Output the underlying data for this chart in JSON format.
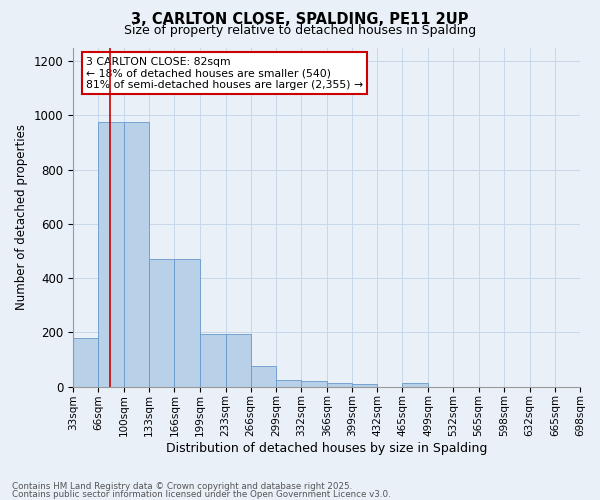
{
  "title1": "3, CARLTON CLOSE, SPALDING, PE11 2UP",
  "title2": "Size of property relative to detached houses in Spalding",
  "xlabel": "Distribution of detached houses by size in Spalding",
  "ylabel": "Number of detached properties",
  "bin_edges": [
    33,
    66,
    100,
    133,
    166,
    199,
    233,
    266,
    299,
    332,
    366,
    399,
    432,
    465,
    499,
    532,
    565,
    598,
    632,
    665,
    698
  ],
  "bar_heights": [
    180,
    975,
    975,
    470,
    470,
    195,
    195,
    75,
    25,
    20,
    15,
    10,
    0,
    15,
    0,
    0,
    0,
    0,
    0,
    0
  ],
  "bar_color": "#b8d0e8",
  "bar_edge_color": "#6699cc",
  "grid_color": "#c8d8e8",
  "bg_color": "#eaf0f8",
  "red_line_x": 82,
  "annotation_text": "3 CARLTON CLOSE: 82sqm\n← 18% of detached houses are smaller (540)\n81% of semi-detached houses are larger (2,355) →",
  "annotation_box_color": "#ffffff",
  "annotation_edge_color": "#cc0000",
  "footnote1": "Contains HM Land Registry data © Crown copyright and database right 2025.",
  "footnote2": "Contains public sector information licensed under the Open Government Licence v3.0.",
  "ylim": [
    0,
    1250
  ],
  "yticks": [
    0,
    200,
    400,
    600,
    800,
    1000,
    1200
  ]
}
